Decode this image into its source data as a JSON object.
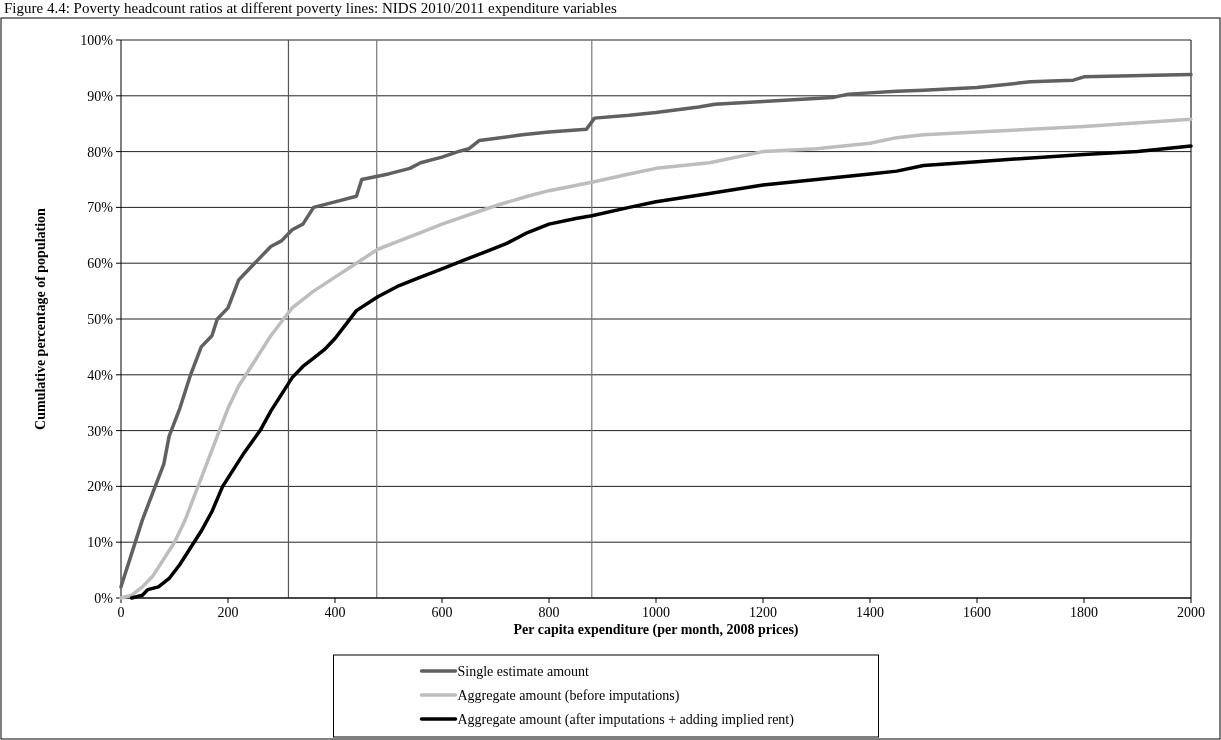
{
  "chart_data": {
    "type": "line",
    "title": "Figure 4.4: Poverty headcount ratios at different poverty lines: NIDS 2010/2011 expenditure variables",
    "xlabel": "Per capita expenditure (per month, 2008 prices)",
    "ylabel": "Cumulative percentage of population",
    "xlim": [
      0,
      2000
    ],
    "xticks": [
      0,
      200,
      400,
      600,
      800,
      1000,
      1200,
      1400,
      1600,
      1800,
      2000
    ],
    "ylim": [
      0,
      100
    ],
    "yticks": [
      {
        "value": 0,
        "label": "0%"
      },
      {
        "value": 10,
        "label": "10%"
      },
      {
        "value": 20,
        "label": "20%"
      },
      {
        "value": 30,
        "label": "30%"
      },
      {
        "value": 40,
        "label": "40%"
      },
      {
        "value": 50,
        "label": "50%"
      },
      {
        "value": 60,
        "label": "60%"
      },
      {
        "value": 70,
        "label": "70%"
      },
      {
        "value": 80,
        "label": "80%"
      },
      {
        "value": 90,
        "label": "90%"
      },
      {
        "value": 100,
        "label": "100%"
      }
    ],
    "grid": "y",
    "legend": "bottom",
    "line_style": "solid",
    "marker": "none",
    "ref_lines": [
      {
        "axis": "x",
        "value": 313,
        "color": "#555555"
      },
      {
        "axis": "x",
        "value": 478,
        "color": "#777777"
      },
      {
        "axis": "x",
        "value": 880,
        "color": "#777777"
      }
    ],
    "series": [
      {
        "name": "Single estimate amount",
        "color": "#606060",
        "x": [
          0,
          20,
          40,
          60,
          80,
          90,
          110,
          130,
          150,
          170,
          180,
          200,
          220,
          240,
          260,
          280,
          300,
          320,
          340,
          360,
          400,
          440,
          450,
          500,
          540,
          560,
          600,
          630,
          650,
          670,
          750,
          800,
          870,
          885,
          950,
          1000,
          1080,
          1110,
          1200,
          1330,
          1360,
          1450,
          1500,
          1600,
          1700,
          1780,
          1800,
          2000
        ],
        "values": [
          2,
          8,
          14,
          19,
          24,
          29,
          34,
          40,
          45,
          47,
          50,
          52,
          57,
          59,
          61,
          63,
          64,
          66,
          67,
          70,
          71,
          72,
          75,
          76,
          77,
          78,
          79,
          80,
          80.5,
          82,
          83,
          83.5,
          84,
          86,
          86.5,
          87,
          88,
          88.5,
          89,
          89.7,
          90.3,
          90.8,
          91,
          91.5,
          92.5,
          92.8,
          93.4,
          93.8
        ]
      },
      {
        "name": "Aggregate amount (before imputations)",
        "color": "#bdbdbd",
        "x": [
          0,
          20,
          40,
          60,
          80,
          100,
          120,
          140,
          160,
          180,
          200,
          220,
          240,
          260,
          280,
          300,
          320,
          360,
          400,
          440,
          480,
          520,
          560,
          600,
          660,
          700,
          760,
          800,
          880,
          950,
          1000,
          1100,
          1200,
          1300,
          1400,
          1450,
          1500,
          1600,
          1800,
          2000
        ],
        "values": [
          0,
          0.5,
          2,
          4,
          7,
          10,
          14,
          19,
          24,
          29,
          34,
          38,
          41,
          44,
          47,
          49.5,
          52,
          55,
          57.5,
          60,
          62.5,
          64,
          65.5,
          67,
          69,
          70.3,
          72,
          73,
          74.5,
          76,
          77,
          78,
          80,
          80.5,
          81.5,
          82.5,
          83,
          83.5,
          84.5,
          85.8
        ]
      },
      {
        "name": "Aggregate amount (after imputations + adding implied rent)",
        "color": "#000000",
        "x": [
          20,
          40,
          50,
          70,
          90,
          110,
          130,
          150,
          170,
          190,
          210,
          230,
          260,
          280,
          300,
          320,
          340,
          360,
          380,
          400,
          420,
          440,
          480,
          520,
          560,
          600,
          640,
          680,
          720,
          760,
          800,
          850,
          880,
          950,
          1000,
          1100,
          1200,
          1300,
          1400,
          1450,
          1500,
          1600,
          1800,
          1900,
          2000
        ],
        "values": [
          0,
          0.5,
          1.5,
          2,
          3.5,
          6,
          9,
          12,
          15.5,
          20,
          23,
          26,
          30,
          33.5,
          36.5,
          39.5,
          41.5,
          43,
          44.5,
          46.5,
          49,
          51.5,
          54,
          56,
          57.5,
          59,
          60.5,
          62,
          63.5,
          65.5,
          67,
          68,
          68.5,
          70,
          71,
          72.5,
          74,
          75,
          76,
          76.5,
          77.5,
          78.2,
          79.5,
          80,
          81
        ]
      }
    ]
  }
}
